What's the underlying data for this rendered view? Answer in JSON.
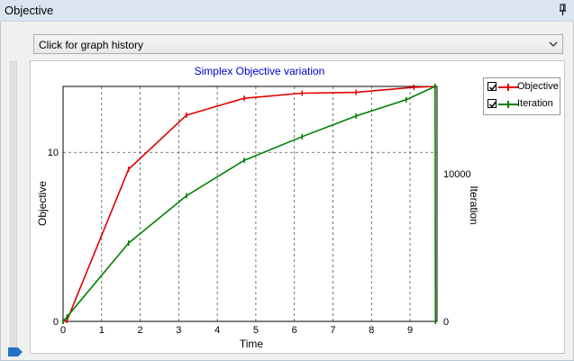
{
  "panel": {
    "title": "Objective",
    "pin_icon": "pin-icon"
  },
  "history_dropdown": {
    "selected": "Click for graph history",
    "icon": "chevron-down-icon"
  },
  "legend": {
    "items": [
      {
        "label": "Objective",
        "checked": true,
        "color": "#e00000"
      },
      {
        "label": "Iteration",
        "checked": true,
        "color": "#008000"
      }
    ]
  },
  "chart_data": {
    "type": "line",
    "title": "Simplex Objective variation",
    "xlabel": "Time",
    "ylabel": "Objective",
    "y2label": "Iteration",
    "xlim": [
      0,
      9.7
    ],
    "ylim": [
      0,
      13.9
    ],
    "y2lim": [
      0,
      15900
    ],
    "x_ticks": [
      "0",
      "1",
      "2",
      "3",
      "4",
      "5",
      "6",
      "7",
      "8",
      "9"
    ],
    "y_ticks": [
      {
        "value": 0,
        "label": "0"
      },
      {
        "value": 10,
        "label": "10"
      }
    ],
    "y2_ticks": [
      {
        "value": 0,
        "label": "0"
      },
      {
        "value": 10000,
        "label": "10000"
      }
    ],
    "grid": true,
    "legend_position": "top-right",
    "series": [
      {
        "name": "Objective",
        "axis": "left",
        "color": "#e00000",
        "x": [
          0.0,
          0.1,
          1.7,
          3.2,
          4.7,
          6.2,
          7.6,
          9.1,
          9.65
        ],
        "y": [
          0.0,
          0.05,
          9.0,
          12.2,
          13.2,
          13.5,
          13.55,
          13.85,
          13.9
        ]
      },
      {
        "name": "Iteration",
        "axis": "right",
        "color": "#008000",
        "x": [
          0.0,
          0.1,
          1.7,
          3.2,
          4.7,
          6.2,
          7.6,
          8.9,
          9.65,
          9.66
        ],
        "y": [
          0,
          300,
          5300,
          8500,
          10900,
          12500,
          13900,
          15000,
          15900,
          0
        ]
      }
    ]
  }
}
